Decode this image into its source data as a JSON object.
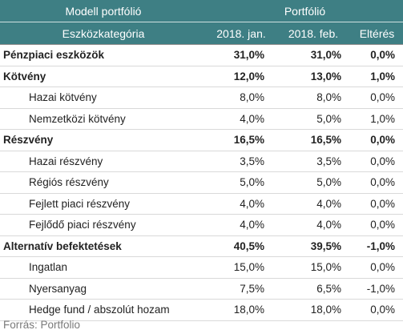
{
  "header": {
    "model_title": "Modell portfólió",
    "portfolio_title": "Portfólió",
    "category_label": "Eszközkategória",
    "col_jan": "2018. jan.",
    "col_feb": "2018. feb.",
    "col_diff": "Eltérés"
  },
  "rows": [
    {
      "label": "Pénzpiaci eszközök",
      "jan": "31,0%",
      "feb": "31,0%",
      "diff": "0,0%",
      "level": "main"
    },
    {
      "label": "Kötvény",
      "jan": "12,0%",
      "feb": "13,0%",
      "diff": "1,0%",
      "level": "main"
    },
    {
      "label": "Hazai kötvény",
      "jan": "8,0%",
      "feb": "8,0%",
      "diff": "0,0%",
      "level": "sub"
    },
    {
      "label": "Nemzetközi kötvény",
      "jan": "4,0%",
      "feb": "5,0%",
      "diff": "1,0%",
      "level": "sub"
    },
    {
      "label": "Részvény",
      "jan": "16,5%",
      "feb": "16,5%",
      "diff": "0,0%",
      "level": "main"
    },
    {
      "label": "Hazai részvény",
      "jan": "3,5%",
      "feb": "3,5%",
      "diff": "0,0%",
      "level": "sub"
    },
    {
      "label": "Régiós részvény",
      "jan": "5,0%",
      "feb": "5,0%",
      "diff": "0,0%",
      "level": "sub"
    },
    {
      "label": "Fejlett piaci részvény",
      "jan": "4,0%",
      "feb": "4,0%",
      "diff": "0,0%",
      "level": "sub"
    },
    {
      "label": "Fejlődő piaci részvény",
      "jan": "4,0%",
      "feb": "4,0%",
      "diff": "0,0%",
      "level": "sub"
    },
    {
      "label": "Alternatív befektetések",
      "jan": "40,5%",
      "feb": "39,5%",
      "diff": "-1,0%",
      "level": "main"
    },
    {
      "label": "Ingatlan",
      "jan": "15,0%",
      "feb": "15,0%",
      "diff": "0,0%",
      "level": "sub"
    },
    {
      "label": "Nyersanyag",
      "jan": "7,5%",
      "feb": "6,5%",
      "diff": "-1,0%",
      "level": "sub"
    },
    {
      "label": "Hedge fund / abszolút hozam",
      "jan": "18,0%",
      "feb": "18,0%",
      "diff": "0,0%",
      "level": "sub"
    }
  ],
  "source": "Forrás: Portfolio",
  "colors": {
    "header_bg": "#3e7f84",
    "header_text": "#ffffff"
  }
}
